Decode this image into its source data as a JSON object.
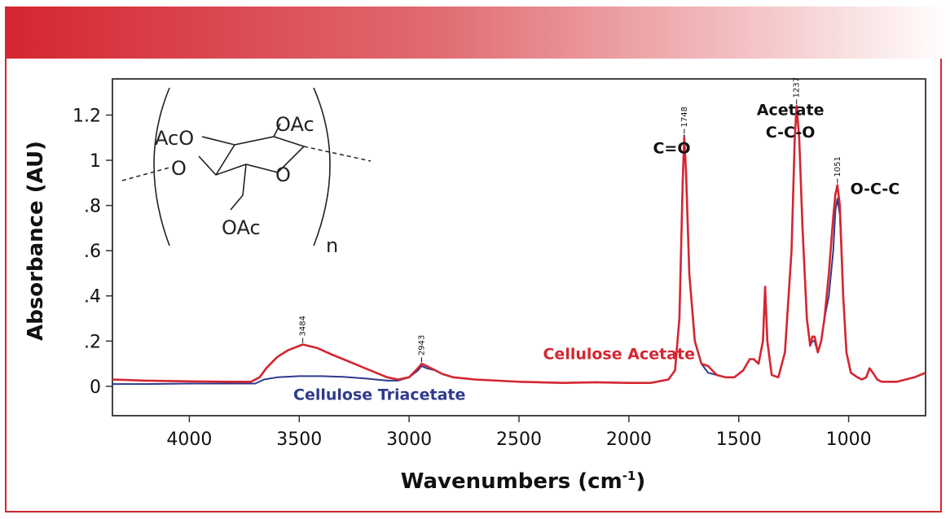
{
  "header": {
    "accent_color": "#d42630"
  },
  "chart_data": {
    "type": "line",
    "xlabel": "Wavenumbers (cm",
    "xlabel_sup": "-1",
    "xlabel_end": ")",
    "ylabel": "Absorbance (AU)",
    "xlim": [
      4350,
      650
    ],
    "x_reversed": true,
    "ylim": [
      -0.13,
      1.36
    ],
    "x_ticks": [
      4000,
      3500,
      3000,
      2500,
      2000,
      1500,
      1000
    ],
    "x_tick_labels": [
      "4000",
      "3500",
      "3000",
      "2500",
      "2000",
      "1500",
      "1000"
    ],
    "y_ticks": [
      0,
      0.2,
      0.4,
      0.6,
      0.8,
      1.0,
      1.2
    ],
    "y_tick_labels": [
      "0",
      ".2",
      ".4",
      ".6",
      ".8",
      "1",
      "1.2"
    ],
    "grid": false,
    "series": [
      {
        "name": "Cellulose Triacetate",
        "color": "#2e3a8c",
        "x": [
          4350,
          4200,
          4000,
          3800,
          3700,
          3660,
          3600,
          3500,
          3400,
          3300,
          3200,
          3100,
          3050,
          3000,
          2960,
          2943,
          2920,
          2880,
          2850,
          2800,
          2700,
          2500,
          2300,
          2150,
          2000,
          1900,
          1820,
          1790,
          1770,
          1755,
          1748,
          1740,
          1725,
          1700,
          1670,
          1640,
          1600,
          1560,
          1520,
          1480,
          1450,
          1432,
          1410,
          1390,
          1380,
          1370,
          1350,
          1320,
          1290,
          1260,
          1245,
          1237,
          1225,
          1210,
          1190,
          1175,
          1165,
          1155,
          1140,
          1125,
          1110,
          1090,
          1070,
          1060,
          1051,
          1040,
          1025,
          1010,
          990,
          960,
          940,
          920,
          905,
          890,
          870,
          850,
          820,
          780,
          740,
          700,
          650
        ],
        "y": [
          0.01,
          0.01,
          0.012,
          0.012,
          0.012,
          0.03,
          0.04,
          0.045,
          0.045,
          0.042,
          0.035,
          0.025,
          0.025,
          0.04,
          0.07,
          0.09,
          0.08,
          0.07,
          0.055,
          0.04,
          0.03,
          0.02,
          0.015,
          0.018,
          0.015,
          0.015,
          0.03,
          0.07,
          0.3,
          0.9,
          1.11,
          0.95,
          0.5,
          0.2,
          0.1,
          0.06,
          0.05,
          0.04,
          0.04,
          0.07,
          0.12,
          0.12,
          0.1,
          0.2,
          0.44,
          0.2,
          0.05,
          0.04,
          0.15,
          0.6,
          1.1,
          1.24,
          1.1,
          0.7,
          0.3,
          0.18,
          0.2,
          0.2,
          0.15,
          0.2,
          0.3,
          0.4,
          0.6,
          0.78,
          0.83,
          0.76,
          0.4,
          0.15,
          0.06,
          0.04,
          0.03,
          0.04,
          0.08,
          0.06,
          0.03,
          0.02,
          0.02,
          0.02,
          0.03,
          0.04,
          0.06
        ]
      },
      {
        "name": "Cellulose Acetate",
        "color": "#d42630",
        "x": [
          4350,
          4200,
          4000,
          3800,
          3720,
          3680,
          3650,
          3600,
          3550,
          3484,
          3420,
          3350,
          3300,
          3200,
          3100,
          3050,
          3000,
          2960,
          2943,
          2920,
          2880,
          2850,
          2800,
          2700,
          2500,
          2300,
          2150,
          2000,
          1900,
          1820,
          1790,
          1770,
          1755,
          1748,
          1740,
          1725,
          1700,
          1670,
          1640,
          1600,
          1560,
          1520,
          1480,
          1450,
          1432,
          1410,
          1390,
          1380,
          1370,
          1350,
          1320,
          1290,
          1260,
          1245,
          1237,
          1225,
          1210,
          1190,
          1175,
          1165,
          1155,
          1140,
          1125,
          1110,
          1090,
          1070,
          1060,
          1051,
          1040,
          1025,
          1010,
          990,
          960,
          940,
          920,
          905,
          890,
          870,
          850,
          820,
          780,
          740,
          700,
          650
        ],
        "y": [
          0.03,
          0.025,
          0.022,
          0.02,
          0.02,
          0.04,
          0.08,
          0.13,
          0.16,
          0.185,
          0.17,
          0.14,
          0.12,
          0.08,
          0.04,
          0.03,
          0.04,
          0.08,
          0.1,
          0.09,
          0.07,
          0.055,
          0.04,
          0.03,
          0.02,
          0.015,
          0.018,
          0.015,
          0.015,
          0.03,
          0.07,
          0.3,
          0.9,
          1.1,
          0.95,
          0.5,
          0.2,
          0.1,
          0.09,
          0.05,
          0.04,
          0.04,
          0.07,
          0.12,
          0.12,
          0.1,
          0.2,
          0.44,
          0.2,
          0.05,
          0.04,
          0.15,
          0.6,
          1.1,
          1.24,
          1.1,
          0.7,
          0.3,
          0.18,
          0.22,
          0.22,
          0.15,
          0.2,
          0.3,
          0.5,
          0.75,
          0.85,
          0.89,
          0.8,
          0.4,
          0.15,
          0.06,
          0.04,
          0.03,
          0.04,
          0.08,
          0.06,
          0.03,
          0.02,
          0.02,
          0.02,
          0.03,
          0.04,
          0.06
        ]
      }
    ],
    "peak_labels": [
      {
        "x": 3484,
        "y": 0.185,
        "text": "3484"
      },
      {
        "x": 2943,
        "y": 0.1,
        "text": "2943"
      },
      {
        "x": 1748,
        "y": 1.11,
        "text": "1748"
      },
      {
        "x": 1237,
        "y": 1.24,
        "text": "1237"
      },
      {
        "x": 1051,
        "y": 0.89,
        "text": "1051"
      }
    ],
    "annotations": [
      {
        "text": "C=O",
        "x": 1805,
        "y": 1.03
      },
      {
        "text": "Acetate",
        "x": 1265,
        "y": 1.2
      },
      {
        "text": "C-C-O",
        "x": 1265,
        "y": 1.1
      },
      {
        "text": "O-C-C",
        "x": 880,
        "y": 0.85
      }
    ],
    "series_labels": [
      {
        "text": "Cellulose Acetate",
        "x": 2045,
        "y": 0.12,
        "color": "#d42630"
      },
      {
        "text": "Cellulose Triacetate",
        "x": 3135,
        "y": -0.06,
        "color": "#2e3a8c"
      }
    ],
    "structure": {
      "aco": "AcO",
      "oac_top": "OAc",
      "o_left": "O",
      "o_ring": "O",
      "oac_bottom": "OAc",
      "n": "n"
    }
  }
}
